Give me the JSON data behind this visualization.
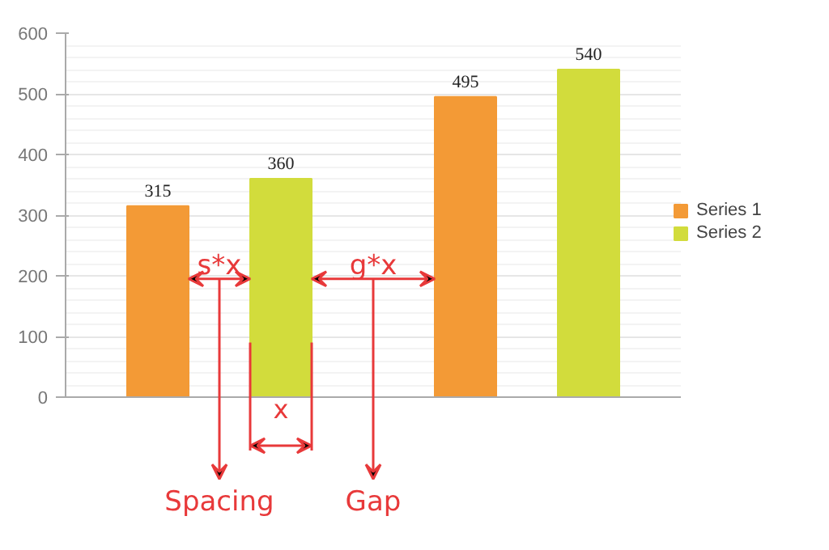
{
  "chart_data": {
    "type": "bar",
    "categories": [
      null,
      null
    ],
    "series": [
      {
        "name": "Series 1",
        "color": "#f39a36",
        "values": [
          315,
          495
        ]
      },
      {
        "name": "Series 2",
        "color": "#d2dc3c",
        "values": [
          360,
          540
        ]
      }
    ],
    "ylim": [
      0,
      600
    ],
    "yticks": [
      0,
      100,
      200,
      300,
      400,
      500,
      600
    ],
    "grid": "y",
    "legend": "right",
    "data_labels": true,
    "annotations": [
      "s*x",
      "g*x",
      "x",
      "Spacing",
      "Gap"
    ]
  }
}
